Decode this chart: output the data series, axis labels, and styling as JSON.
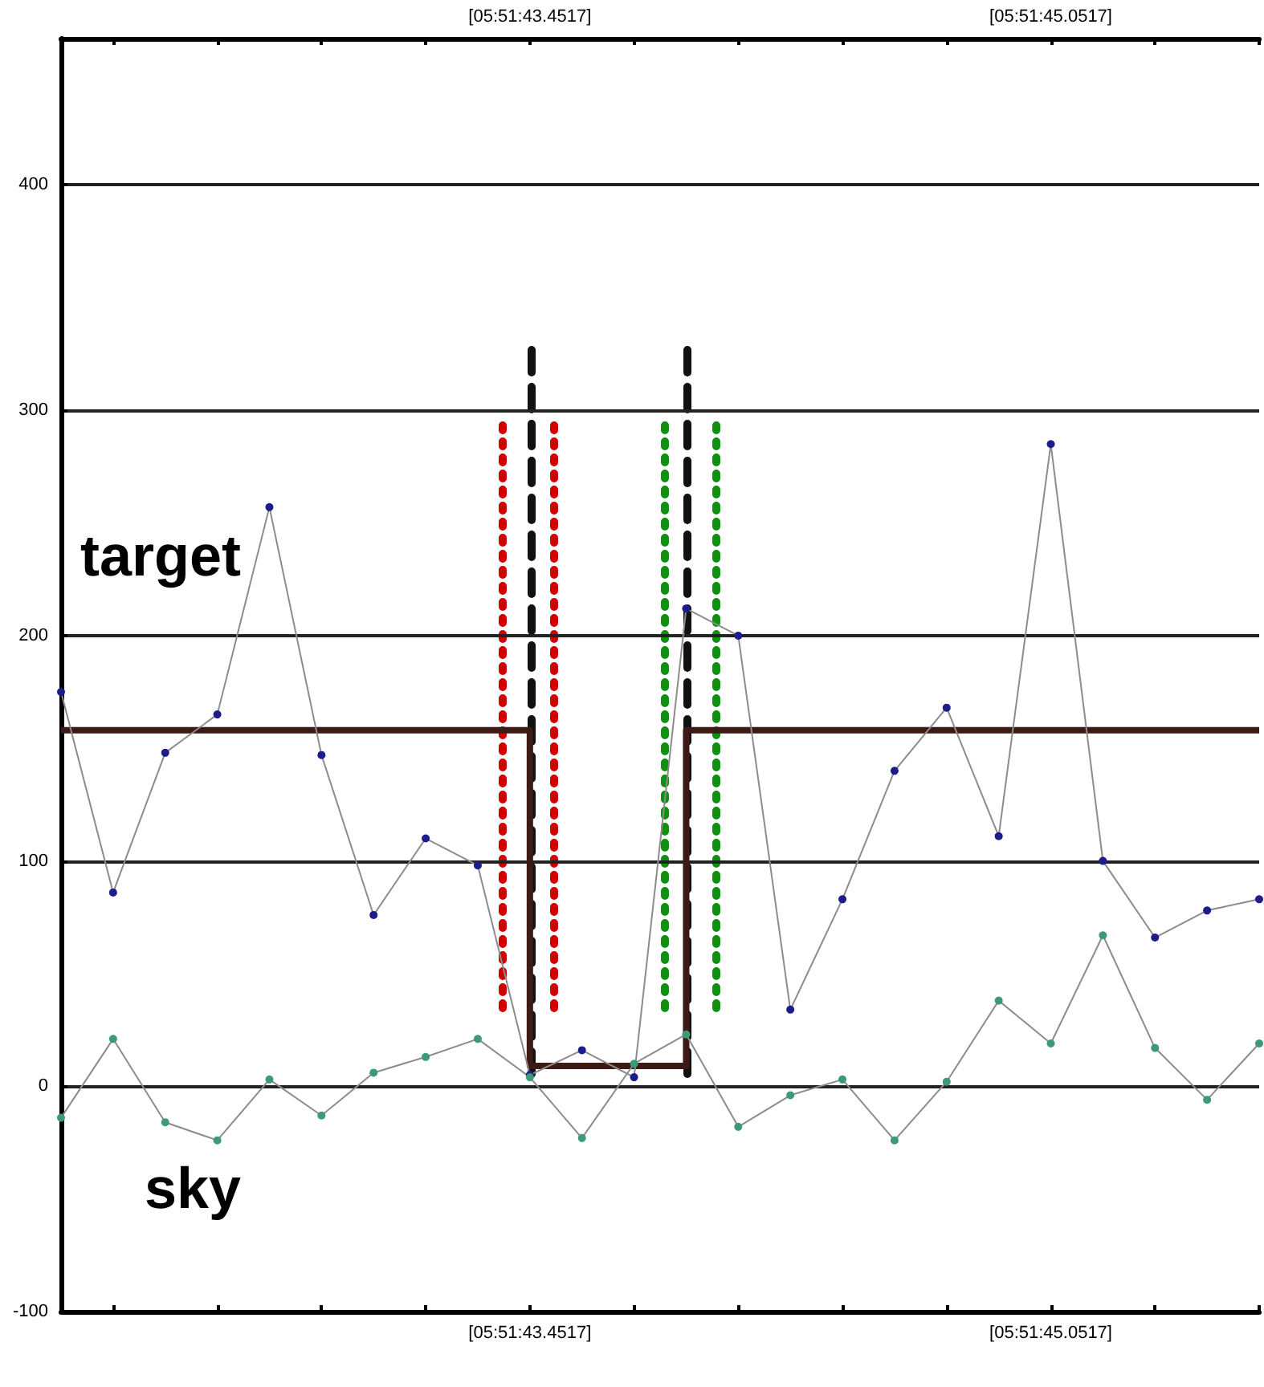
{
  "chart_data": {
    "type": "line",
    "categories": [
      null,
      null,
      null,
      null,
      null,
      null,
      null,
      null,
      null,
      "[05:51:43.4517]",
      null,
      null,
      null,
      null,
      null,
      null,
      null,
      null,
      null,
      "[05:51:45.0517]",
      null,
      null,
      null,
      null
    ],
    "ylim": [
      -100,
      465
    ],
    "yticks": [
      -100,
      0,
      100,
      200,
      300,
      400
    ],
    "grid": "y",
    "legend": false,
    "marker": "circle",
    "line_style": "solid",
    "series": [
      {
        "name": "target",
        "color": "#1c1c8a",
        "values": [
          175,
          86,
          148,
          165,
          257,
          147,
          76,
          110,
          98,
          5,
          16,
          4,
          212,
          200,
          34,
          83,
          140,
          168,
          111,
          285,
          100,
          66,
          78,
          83
        ]
      },
      {
        "name": "sky",
        "color": "#3d9a78",
        "values": [
          -14,
          21,
          -16,
          -24,
          3,
          -13,
          6,
          13,
          21,
          4,
          -23,
          10,
          23,
          -18,
          -4,
          3,
          -24,
          2,
          38,
          19,
          67,
          17,
          -6,
          19
        ]
      },
      {
        "type": "step",
        "color": "#3d1a14",
        "marker": "none",
        "values": [
          158,
          158,
          158,
          158,
          158,
          158,
          158,
          158,
          158,
          9,
          9,
          9,
          158,
          158,
          158,
          158,
          158,
          158,
          158,
          158,
          158,
          158,
          158,
          158
        ]
      }
    ]
  }
}
